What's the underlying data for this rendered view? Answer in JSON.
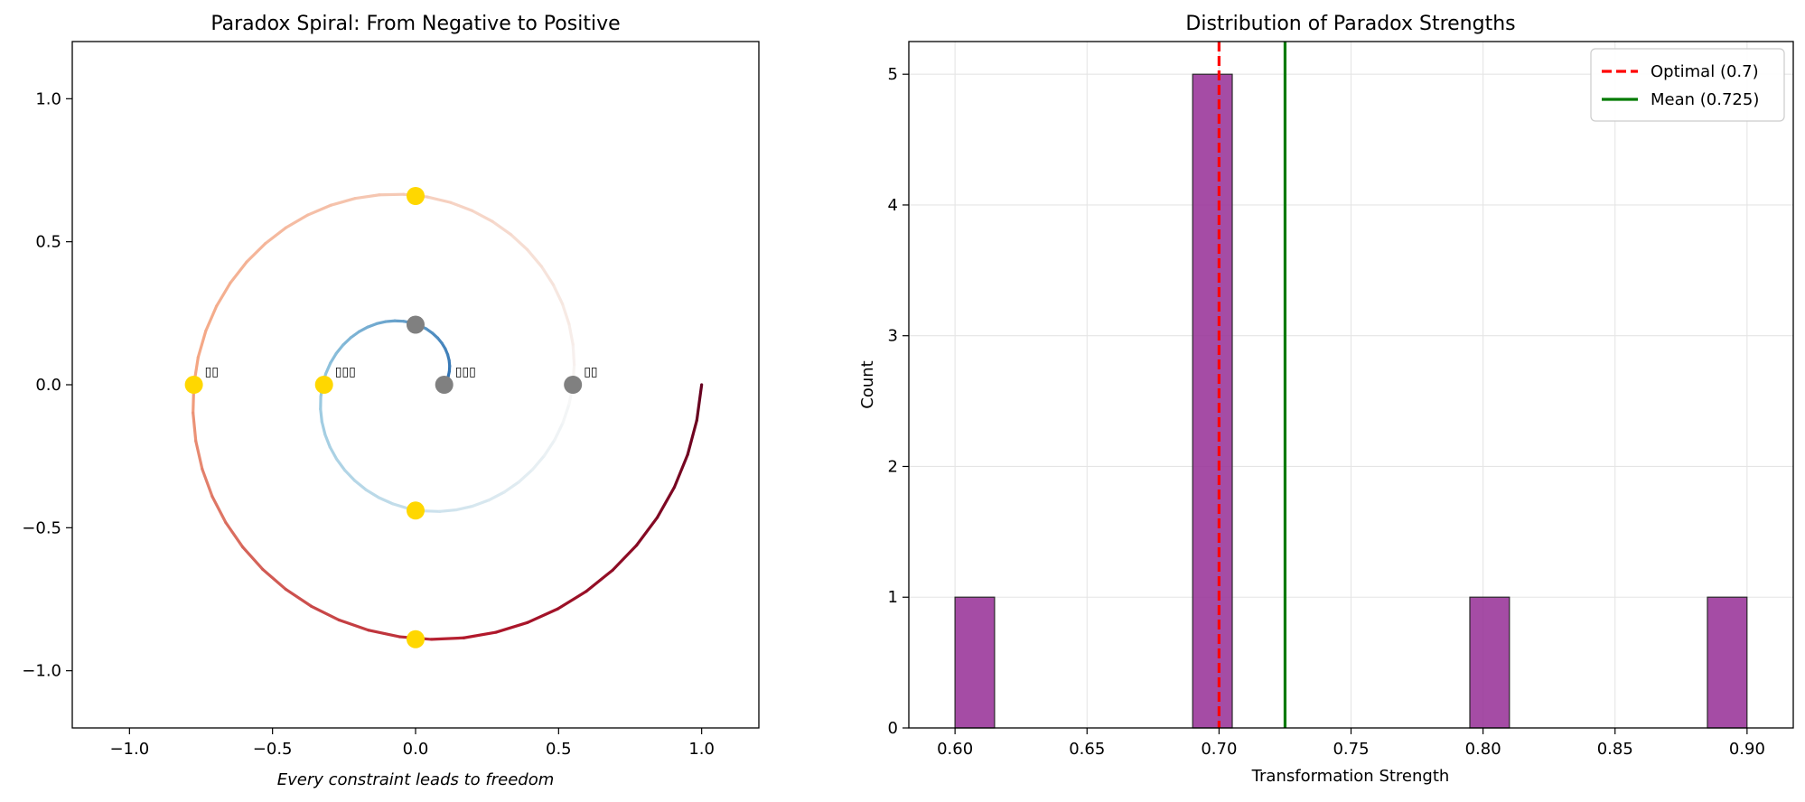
{
  "chart_data": [
    {
      "type": "line",
      "title": "Paradox Spiral: From Negative to Positive",
      "caption": "Every constraint leads to freedom",
      "xlabel": "",
      "ylabel": "",
      "xlim": [
        -1.2,
        1.2
      ],
      "ylim": [
        -1.2,
        1.2
      ],
      "xticks": [
        -1.0,
        -0.5,
        0.0,
        0.5,
        1.0
      ],
      "yticks": [
        -1.0,
        -0.5,
        0.0,
        0.5,
        1.0
      ],
      "xtick_labels": [
        "−1.0",
        "−0.5",
        "0.0",
        "0.5",
        "1.0"
      ],
      "ytick_labels": [
        "−1.0",
        "−0.5",
        "0.0",
        "0.5",
        "1.0"
      ],
      "grid": false,
      "spiral": {
        "r_start": 0.1,
        "r_end": 1.0,
        "turns": 2,
        "start_angle_deg": 0,
        "color_start": "#2166ac",
        "color_mid": "#f7f7f7",
        "color_end": "#67001f"
      },
      "markers": [
        {
          "x": 0.1,
          "y": 0.0,
          "color": "#808080",
          "label": "▯▯▯"
        },
        {
          "x": 0.0,
          "y": 0.21,
          "color": "#808080",
          "label": ""
        },
        {
          "x": -0.32,
          "y": 0.0,
          "color": "#ffd700",
          "label": "▯▯▯"
        },
        {
          "x": 0.0,
          "y": -0.44,
          "color": "#ffd700",
          "label": ""
        },
        {
          "x": 0.55,
          "y": 0.0,
          "color": "#808080",
          "label": "▯▯"
        },
        {
          "x": 0.0,
          "y": 0.66,
          "color": "#ffd700",
          "label": ""
        },
        {
          "x": -0.775,
          "y": 0.0,
          "color": "#ffd700",
          "label": "▯▯"
        },
        {
          "x": 0.0,
          "y": -0.89,
          "color": "#ffd700",
          "label": ""
        }
      ]
    },
    {
      "type": "bar",
      "title": "Distribution of Paradox Strengths",
      "xlabel": "Transformation Strength",
      "ylabel": "Count",
      "xlim": [
        0.5825,
        0.9175
      ],
      "ylim": [
        0,
        5.25
      ],
      "xticks": [
        0.6,
        0.65,
        0.7,
        0.75,
        0.8,
        0.85,
        0.9
      ],
      "xtick_labels": [
        "0.60",
        "0.65",
        "0.70",
        "0.75",
        "0.80",
        "0.85",
        "0.90"
      ],
      "yticks": [
        0,
        1,
        2,
        3,
        4,
        5
      ],
      "ytick_labels": [
        "0",
        "1",
        "2",
        "3",
        "4",
        "5"
      ],
      "grid": true,
      "bar_color": "#993399",
      "bars": [
        {
          "x0": 0.6,
          "x1": 0.615,
          "value": 1
        },
        {
          "x0": 0.69,
          "x1": 0.705,
          "value": 5
        },
        {
          "x0": 0.795,
          "x1": 0.81,
          "value": 1
        },
        {
          "x0": 0.885,
          "x1": 0.9,
          "value": 1
        }
      ],
      "vlines": [
        {
          "x": 0.7,
          "color": "#ff0000",
          "style": "dashed",
          "name": "Optimal (0.7)"
        },
        {
          "x": 0.725,
          "color": "#007a00",
          "style": "solid",
          "name": "Mean (0.725)"
        }
      ],
      "legend_position": "upper right"
    }
  ]
}
